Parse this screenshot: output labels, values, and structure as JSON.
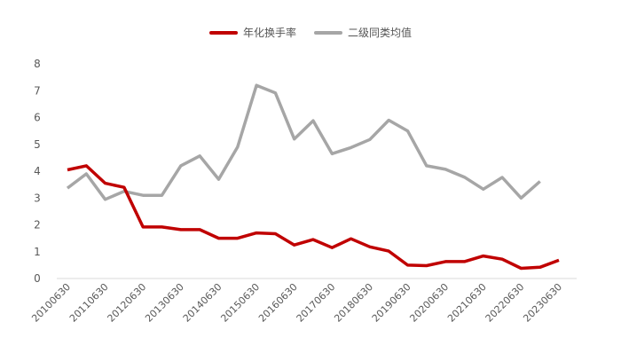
{
  "colors": {
    "turnover": "#c00000",
    "peer": "#a6a6a6",
    "axis": "#d9d9d9",
    "text": "#595959"
  },
  "chart_data": {
    "type": "line",
    "title": "",
    "xlabel": "",
    "ylabel": "",
    "ylim": [
      0,
      8
    ],
    "yticks": [
      "0",
      "1",
      "2",
      "3",
      "4",
      "5",
      "6",
      "7",
      "8"
    ],
    "grid": false,
    "legend_position": "top-center",
    "x": [
      "20100630",
      "20101231",
      "20110630",
      "20111231",
      "20120630",
      "20121231",
      "20130630",
      "20131231",
      "20140630",
      "20141231",
      "20150630",
      "20151231",
      "20160630",
      "20161231",
      "20170630",
      "20171231",
      "20180630",
      "20181231",
      "20190630",
      "20191231",
      "20200630",
      "20201231",
      "20210630",
      "20211231",
      "20220630",
      "20221231",
      "20230630"
    ],
    "xtick_labels": [
      "20100630",
      "20110630",
      "20120630",
      "20130630",
      "20140630",
      "20150630",
      "20160630",
      "20170630",
      "20180630",
      "20190630",
      "20200630",
      "20210630",
      "20220630",
      "20230630"
    ],
    "series": [
      {
        "name": "年化换手率",
        "color": "#c00000",
        "values": [
          4.05,
          4.2,
          3.55,
          3.4,
          1.92,
          1.92,
          1.82,
          1.82,
          1.5,
          1.5,
          1.7,
          1.67,
          1.25,
          1.45,
          1.15,
          1.48,
          1.18,
          1.02,
          0.5,
          0.48,
          0.63,
          0.63,
          0.84,
          0.72,
          0.38,
          0.42,
          0.68
        ]
      },
      {
        "name": "二级同类均值",
        "color": "#a6a6a6",
        "values": [
          3.37,
          3.9,
          2.95,
          3.25,
          3.1,
          3.1,
          4.2,
          4.57,
          3.7,
          4.9,
          7.2,
          6.92,
          5.2,
          5.88,
          4.65,
          4.88,
          5.18,
          5.9,
          5.5,
          4.2,
          4.07,
          3.78,
          3.33,
          3.77,
          3.0,
          3.62,
          null
        ]
      }
    ]
  }
}
